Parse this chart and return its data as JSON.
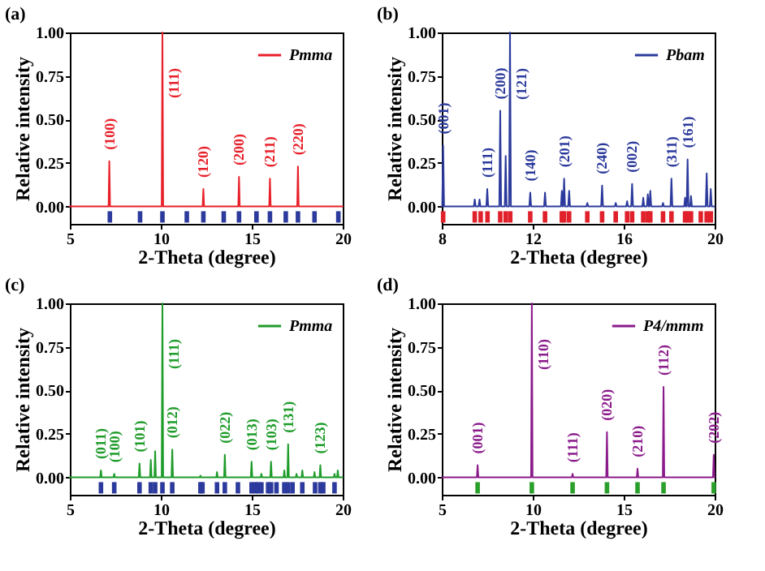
{
  "chart_data": [
    {
      "type": "line",
      "title": "(a)",
      "xlabel": "2-Theta (degree)",
      "ylabel": "Relative intensity",
      "xlim": [
        5,
        20
      ],
      "ylim": [
        -0.1,
        1.0
      ],
      "xticks": [
        5,
        10,
        15,
        20
      ],
      "yticks": [
        {
          "value": 0,
          "label": "0.00"
        },
        {
          "value": 0.25,
          "label": "0.25"
        },
        {
          "value": 0.5,
          "label": "0.50"
        },
        {
          "value": 0.75,
          "label": "0.75"
        },
        {
          "value": 1,
          "label": "1.00"
        }
      ],
      "legend": "top right",
      "series": [
        {
          "name": "Pmma",
          "color": "#e8202a",
          "x": [
            5,
            7.13,
            7.17,
            7.21,
            10.05,
            10.09,
            10.13,
            12.3,
            12.34,
            12.38,
            14.26,
            14.3,
            14.34,
            15.96,
            16.0,
            16.04,
            17.5,
            17.54,
            17.58,
            20
          ],
          "values": [
            0,
            0,
            0.26,
            0,
            0,
            1.0,
            0,
            0,
            0.1,
            0,
            0,
            0.17,
            0,
            0,
            0.16,
            0,
            0,
            0.23,
            0,
            0
          ]
        },
        {
          "type": "scatter",
          "color": "#2b3a9c",
          "x": [
            7.2,
            8.86,
            10.09,
            11.43,
            12.34,
            13.46,
            14.3,
            15.26,
            16.0,
            16.87,
            17.54,
            18.45,
            19.76
          ],
          "values": [
            -0.06,
            -0.06,
            -0.06,
            -0.06,
            -0.06,
            -0.06,
            -0.06,
            -0.06,
            -0.06,
            -0.06,
            -0.06,
            -0.06,
            -0.06
          ]
        }
      ],
      "annotations": [
        {
          "text": "(100)",
          "x": 7.17,
          "y": 0.26
        },
        {
          "text": "(111)",
          "x": 10.09,
          "y": 1.0
        },
        {
          "text": "(120)",
          "x": 12.34,
          "y": 0.1
        },
        {
          "text": "(200)",
          "x": 14.3,
          "y": 0.17
        },
        {
          "text": "(211)",
          "x": 16.0,
          "y": 0.16
        },
        {
          "text": "(220)",
          "x": 17.54,
          "y": 0.23
        }
      ]
    },
    {
      "type": "line",
      "title": "(b)",
      "xlabel": "2-Theta (degree)",
      "ylabel": "Relative intensity",
      "xlim": [
        8,
        20
      ],
      "ylim": [
        -0.1,
        1.0
      ],
      "xticks": [
        8,
        12,
        16,
        20
      ],
      "yticks": [
        {
          "value": 0,
          "label": "0.00"
        },
        {
          "value": 0.25,
          "label": "0.25"
        },
        {
          "value": 0.5,
          "label": "0.50"
        },
        {
          "value": 0.75,
          "label": "0.75"
        },
        {
          "value": 1,
          "label": "1.00"
        }
      ],
      "legend": "top right",
      "series": [
        {
          "name": "Pbam",
          "color": "#2b3a9c",
          "x": [
            8,
            8.02,
            8.06,
            8.1,
            9.41,
            9.45,
            9.49,
            9.62,
            9.66,
            9.7,
            9.96,
            10.0,
            10.04,
            10.53,
            10.57,
            10.61,
            10.77,
            10.81,
            10.85,
            10.96,
            11.0,
            11.04,
            11.85,
            11.89,
            11.93,
            12.5,
            12.54,
            12.58,
            13.24,
            13.28,
            13.32,
            13.34,
            13.38,
            13.42,
            13.56,
            13.6,
            13.64,
            14.36,
            14.4,
            14.44,
            15.01,
            15.05,
            15.09,
            15.61,
            15.65,
            15.69,
            16.11,
            16.15,
            16.19,
            16.33,
            16.37,
            16.41,
            16.82,
            16.86,
            16.9,
            17.02,
            17.06,
            17.1,
            17.13,
            17.17,
            17.21,
            17.69,
            17.73,
            17.77,
            18.06,
            18.1,
            18.14,
            18.66,
            18.7,
            18.74,
            18.77,
            18.81,
            18.85,
            18.92,
            18.96,
            19.0,
            19.61,
            19.65,
            19.69,
            19.79,
            19.83,
            19.87,
            20
          ],
          "values": [
            0,
            0,
            0.35,
            0,
            0,
            0.04,
            0,
            0,
            0.04,
            0,
            0,
            0.1,
            0,
            0,
            0.55,
            0,
            0,
            0.29,
            0,
            0,
            1.0,
            0,
            0,
            0.08,
            0,
            0,
            0.08,
            0,
            0,
            0.09,
            0,
            0,
            0.16,
            0,
            0,
            0.09,
            0,
            0,
            0.02,
            0,
            0,
            0.12,
            0,
            0,
            0.02,
            0,
            0,
            0.03,
            0,
            0,
            0.13,
            0,
            0,
            0.05,
            0,
            0,
            0.07,
            0,
            0,
            0.09,
            0,
            0,
            0.02,
            0,
            0,
            0.16,
            0,
            0,
            0.05,
            0,
            0,
            0.27,
            0,
            0,
            0.06,
            0,
            0,
            0.19,
            0,
            0,
            0.1,
            0,
            0
          ]
        },
        {
          "type": "scatter",
          "color": "#e0202a",
          "x": [
            8.06,
            9.45,
            9.71,
            10.01,
            10.57,
            10.81,
            11.01,
            11.89,
            12.54,
            13.28,
            13.38,
            13.6,
            14.4,
            15.05,
            15.65,
            16.15,
            16.37,
            16.86,
            17.06,
            17.17,
            17.73,
            18.1,
            18.7,
            18.81,
            18.96,
            19.39,
            19.65,
            19.83
          ],
          "values": [
            -0.06,
            -0.06,
            -0.06,
            -0.06,
            -0.06,
            -0.06,
            -0.06,
            -0.06,
            -0.06,
            -0.06,
            -0.06,
            -0.06,
            -0.06,
            -0.06,
            -0.06,
            -0.06,
            -0.06,
            -0.06,
            -0.06,
            -0.06,
            -0.06,
            -0.06,
            -0.06,
            -0.06,
            -0.06,
            -0.06,
            -0.06,
            -0.06
          ]
        }
      ],
      "annotations": [
        {
          "text": "(001)",
          "x": 8.06,
          "y": 0.35
        },
        {
          "text": "(111)",
          "x": 10.0,
          "y": 0.1
        },
        {
          "text": "(200)",
          "x": 10.57,
          "y": 0.55
        },
        {
          "text": "(121)",
          "x": 11.0,
          "y": 1.0
        },
        {
          "text": "(140)",
          "x": 11.89,
          "y": 0.08
        },
        {
          "text": "(201)",
          "x": 13.38,
          "y": 0.16
        },
        {
          "text": "(240)",
          "x": 15.05,
          "y": 0.12
        },
        {
          "text": "(002)",
          "x": 16.37,
          "y": 0.13
        },
        {
          "text": "(311)",
          "x": 18.1,
          "y": 0.16
        },
        {
          "text": "(161)",
          "x": 18.81,
          "y": 0.27
        }
      ]
    },
    {
      "type": "line",
      "title": "(c)",
      "xlabel": "2-Theta (degree)",
      "ylabel": "Relative intensity",
      "xlim": [
        5,
        20
      ],
      "ylim": [
        -0.1,
        1.0
      ],
      "xticks": [
        5,
        10,
        15,
        20
      ],
      "yticks": [
        {
          "value": 0,
          "label": "0.00"
        },
        {
          "value": 0.25,
          "label": "0.25"
        },
        {
          "value": 0.5,
          "label": "0.50"
        },
        {
          "value": 0.75,
          "label": "0.75"
        },
        {
          "value": 1,
          "label": "1.00"
        }
      ],
      "legend": "top right",
      "series": [
        {
          "name": "Pmma",
          "color": "#1e9c2a",
          "x": [
            5,
            6.67,
            6.71,
            6.75,
            7.4,
            7.44,
            7.48,
            8.79,
            8.83,
            8.87,
            9.41,
            9.45,
            9.49,
            9.65,
            9.69,
            9.73,
            10.05,
            10.09,
            10.13,
            10.59,
            10.63,
            10.67,
            12.14,
            12.18,
            12.22,
            13.05,
            13.09,
            13.13,
            13.48,
            13.52,
            13.56,
            14.95,
            14.99,
            15.03,
            15.49,
            15.53,
            15.57,
            16.02,
            16.06,
            16.1,
            16.75,
            16.79,
            16.83,
            16.96,
            17.0,
            17.04,
            17.42,
            17.46,
            17.5,
            17.74,
            17.78,
            17.82,
            18.41,
            18.45,
            18.49,
            18.73,
            18.77,
            18.81,
            19.51,
            19.55,
            19.59,
            19.69,
            19.73,
            19.77,
            20
          ],
          "values": [
            0,
            0,
            0.04,
            0,
            0,
            0.02,
            0,
            0,
            0.08,
            0,
            0,
            0.1,
            0,
            0,
            0.15,
            0,
            0,
            1.0,
            0,
            0,
            0.16,
            0,
            0,
            0.01,
            0,
            0,
            0.03,
            0,
            0,
            0.13,
            0,
            0,
            0.09,
            0,
            0,
            0.02,
            0,
            0,
            0.09,
            0,
            0,
            0.04,
            0,
            0,
            0.19,
            0,
            0,
            0.02,
            0,
            0,
            0.04,
            0,
            0,
            0.03,
            0,
            0,
            0.07,
            0,
            0,
            0.02,
            0,
            0,
            0.04,
            0,
            0
          ]
        },
        {
          "type": "scatter",
          "color": "#2b3a9c",
          "x": [
            6.71,
            7.44,
            8.83,
            9.45,
            9.69,
            10.09,
            10.63,
            12.18,
            12.29,
            13.09,
            13.52,
            14.24,
            14.99,
            15.18,
            15.34,
            15.53,
            15.9,
            16.06,
            16.36,
            16.79,
            17.0,
            17.24,
            17.78,
            18.48,
            18.77,
            18.93,
            19.55
          ],
          "values": [
            -0.06,
            -0.06,
            -0.06,
            -0.06,
            -0.06,
            -0.06,
            -0.06,
            -0.06,
            -0.06,
            -0.06,
            -0.06,
            -0.06,
            -0.06,
            -0.06,
            -0.06,
            -0.06,
            -0.06,
            -0.06,
            -0.06,
            -0.06,
            -0.06,
            -0.06,
            -0.06,
            -0.06,
            -0.06,
            -0.06,
            -0.06
          ]
        }
      ],
      "annotations": [
        {
          "text": "(011)",
          "x": 6.71,
          "y": 0.04
        },
        {
          "text": "(100)",
          "x": 7.44,
          "y": 0.02
        },
        {
          "text": "(101)",
          "x": 8.83,
          "y": 0.08
        },
        {
          "text": "(111)",
          "x": 10.09,
          "y": 1.0
        },
        {
          "text": "(012)",
          "x": 10.63,
          "y": 0.16
        },
        {
          "text": "(022)",
          "x": 13.52,
          "y": 0.13
        },
        {
          "text": "(013)",
          "x": 14.99,
          "y": 0.09
        },
        {
          "text": "(103)",
          "x": 16.06,
          "y": 0.09
        },
        {
          "text": "(131)",
          "x": 17.0,
          "y": 0.19
        },
        {
          "text": "(123)",
          "x": 18.77,
          "y": 0.07
        }
      ]
    },
    {
      "type": "line",
      "title": "(d)",
      "xlabel": "2-Theta (degree)",
      "ylabel": "Relative intensity",
      "xlim": [
        5,
        20
      ],
      "ylim": [
        -0.1,
        1.0
      ],
      "xticks": [
        5,
        10,
        15,
        20
      ],
      "yticks": [
        {
          "value": 0,
          "label": "0.00"
        },
        {
          "value": 0.25,
          "label": "0.25"
        },
        {
          "value": 0.5,
          "label": "0.50"
        },
        {
          "value": 0.75,
          "label": "0.75"
        },
        {
          "value": 1,
          "label": "1.00"
        }
      ],
      "legend": "top right",
      "series": [
        {
          "name": "P4/mmm",
          "color": "#8b1a8b",
          "x": [
            5,
            6.93,
            6.97,
            7.01,
            9.91,
            9.95,
            9.99,
            12.15,
            12.19,
            12.23,
            14.04,
            14.08,
            14.12,
            15.72,
            15.76,
            15.8,
            17.15,
            17.19,
            17.23,
            19.91,
            19.95,
            19.99,
            20
          ],
          "values": [
            0,
            0,
            0.07,
            0,
            0,
            1.0,
            0,
            0,
            0.02,
            0,
            0,
            0.26,
            0,
            0,
            0.05,
            0,
            0,
            0.52,
            0,
            0,
            0.13,
            0,
            0
          ]
        },
        {
          "type": "scatter",
          "color": "#2aa02a",
          "x": [
            6.97,
            9.95,
            12.19,
            14.08,
            15.76,
            17.19,
            19.95
          ],
          "values": [
            -0.06,
            -0.06,
            -0.06,
            -0.06,
            -0.06,
            -0.06,
            -0.06
          ]
        }
      ],
      "annotations": [
        {
          "text": "(001)",
          "x": 6.97,
          "y": 0.07
        },
        {
          "text": "(110)",
          "x": 9.95,
          "y": 1.0
        },
        {
          "text": "(111)",
          "x": 12.19,
          "y": 0.02
        },
        {
          "text": "(020)",
          "x": 14.08,
          "y": 0.26
        },
        {
          "text": "(210)",
          "x": 15.76,
          "y": 0.05
        },
        {
          "text": "(112)",
          "x": 17.19,
          "y": 0.52
        },
        {
          "text": "(202)",
          "x": 19.95,
          "y": 0.13
        }
      ]
    }
  ]
}
